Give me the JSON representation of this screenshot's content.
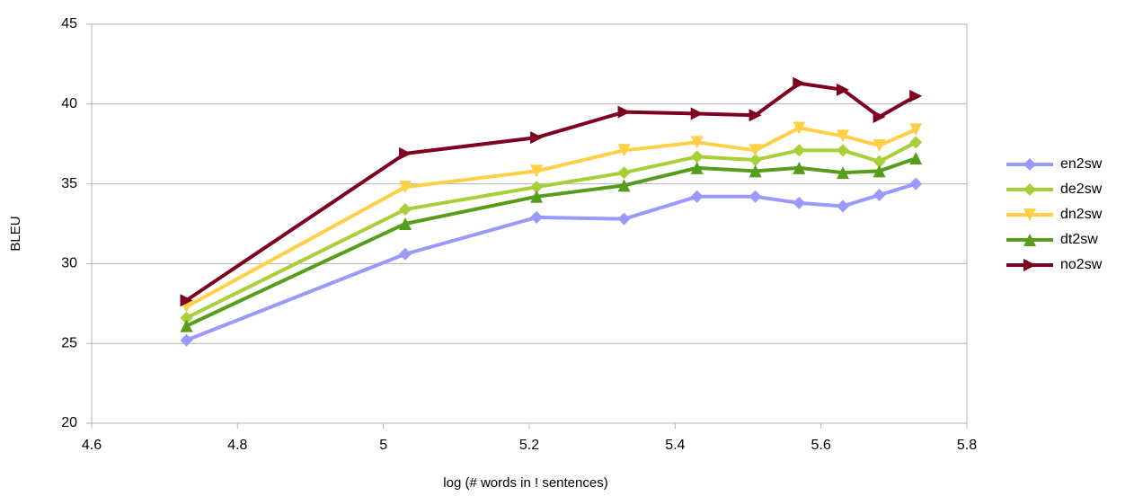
{
  "chart_data": {
    "type": "line",
    "x_label": "log (# words in ! sentences)",
    "y_label": "BLEU",
    "x": [
      4.73,
      5.03,
      5.21,
      5.33,
      5.43,
      5.51,
      5.57,
      5.63,
      5.68,
      5.73
    ],
    "series": [
      {
        "name": "en2sw",
        "color": "#9999ff",
        "marker": "diamond",
        "values": [
          25.2,
          30.6,
          32.9,
          32.8,
          34.2,
          34.2,
          33.8,
          33.6,
          34.3,
          35.0
        ]
      },
      {
        "name": "de2sw",
        "color": "#a9cf38",
        "marker": "diamond",
        "values": [
          26.6,
          33.4,
          34.8,
          35.7,
          36.7,
          36.5,
          37.1,
          37.1,
          36.4,
          37.6
        ]
      },
      {
        "name": "dn2sw",
        "color": "#ffd045",
        "marker": "triangle-down",
        "values": [
          27.3,
          34.8,
          35.8,
          37.1,
          37.6,
          37.1,
          38.5,
          38.0,
          37.4,
          38.4
        ]
      },
      {
        "name": "dt2sw",
        "color": "#579d1c",
        "marker": "triangle-up",
        "values": [
          26.1,
          32.5,
          34.2,
          34.9,
          36.0,
          35.8,
          36.0,
          35.7,
          35.8,
          36.6
        ]
      },
      {
        "name": "no2sw",
        "color": "#7e0021",
        "marker": "triangle-right",
        "values": [
          27.7,
          36.9,
          37.9,
          39.5,
          39.4,
          39.3,
          41.3,
          40.9,
          39.2,
          40.5
        ]
      }
    ],
    "xlim": [
      4.6,
      5.8
    ],
    "xticks": [
      4.6,
      4.8,
      5,
      5.2,
      5.4,
      5.6,
      5.8
    ],
    "ylim": [
      20,
      45
    ],
    "yticks": [
      20,
      25,
      30,
      35,
      40,
      45
    ],
    "grid": true,
    "legend": "right"
  }
}
